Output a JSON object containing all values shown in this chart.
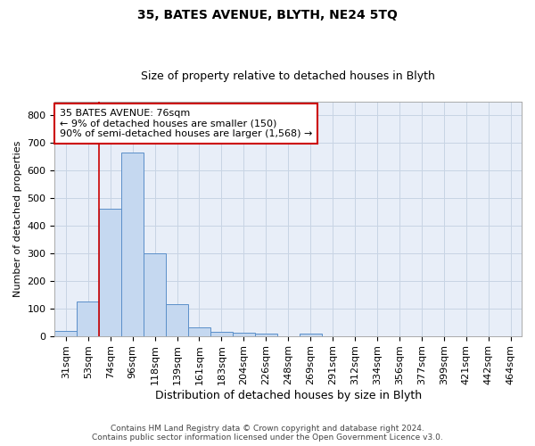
{
  "title1": "35, BATES AVENUE, BLYTH, NE24 5TQ",
  "title2": "Size of property relative to detached houses in Blyth",
  "xlabel": "Distribution of detached houses by size in Blyth",
  "ylabel": "Number of detached properties",
  "footer": "Contains HM Land Registry data © Crown copyright and database right 2024.\nContains public sector information licensed under the Open Government Licence v3.0.",
  "bin_labels": [
    "31sqm",
    "53sqm",
    "74sqm",
    "96sqm",
    "118sqm",
    "139sqm",
    "161sqm",
    "183sqm",
    "204sqm",
    "226sqm",
    "248sqm",
    "269sqm",
    "291sqm",
    "312sqm",
    "334sqm",
    "356sqm",
    "377sqm",
    "399sqm",
    "421sqm",
    "442sqm",
    "464sqm"
  ],
  "bar_heights": [
    18,
    125,
    460,
    665,
    300,
    115,
    32,
    15,
    13,
    10,
    0,
    8,
    0,
    0,
    0,
    0,
    0,
    0,
    0,
    0,
    0
  ],
  "bar_color": "#c5d8f0",
  "bar_edge_color": "#5b8fc9",
  "grid_color": "#c8d4e4",
  "background_color": "#e8eef8",
  "vline_color": "#cc0000",
  "vline_x_index": 2,
  "annotation_text": "35 BATES AVENUE: 76sqm\n← 9% of detached houses are smaller (150)\n90% of semi-detached houses are larger (1,568) →",
  "annotation_box_color": "#cc0000",
  "ylim": [
    0,
    850
  ],
  "yticks": [
    0,
    100,
    200,
    300,
    400,
    500,
    600,
    700,
    800
  ],
  "title1_fontsize": 10,
  "title2_fontsize": 9,
  "xlabel_fontsize": 9,
  "ylabel_fontsize": 8,
  "tick_fontsize": 8,
  "ann_fontsize": 8
}
